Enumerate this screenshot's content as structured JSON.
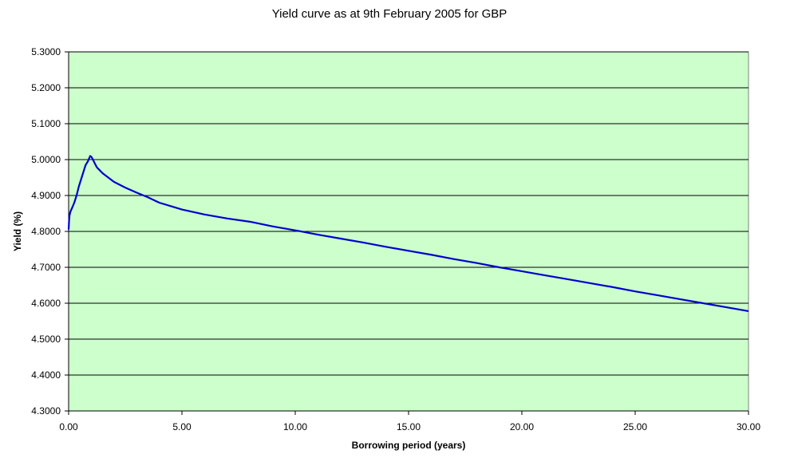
{
  "chart_data": {
    "type": "line",
    "title": "Yield curve as at 9th February 2005 for GBP",
    "xlabel": "Borrowing period (years)",
    "ylabel": "Yield (%)",
    "xlim": [
      0,
      30
    ],
    "ylim": [
      4.3,
      5.3
    ],
    "x_ticks": [
      0,
      5,
      10,
      15,
      20,
      25,
      30
    ],
    "x_tick_labels": [
      "0.00",
      "5.00",
      "10.00",
      "15.00",
      "20.00",
      "25.00",
      "30.00"
    ],
    "y_ticks": [
      4.3,
      4.4,
      4.5,
      4.6,
      4.7,
      4.8,
      4.9,
      5.0,
      5.1,
      5.2,
      5.3
    ],
    "y_tick_labels": [
      "4.3000",
      "4.4000",
      "4.5000",
      "4.6000",
      "4.7000",
      "4.8000",
      "4.9000",
      "5.0000",
      "5.1000",
      "5.2000",
      "5.3000"
    ],
    "grid": "horizontal",
    "legend": "none",
    "series": [
      {
        "x": [
          0.0,
          0.02,
          0.04,
          0.08,
          0.15,
          0.25,
          0.35,
          0.45,
          0.55,
          0.65,
          0.75,
          0.85,
          0.95,
          1.0,
          1.05,
          1.15,
          1.25,
          1.5,
          1.75,
          2.0,
          2.5,
          3.0,
          3.5,
          4.0,
          5.0,
          6.0,
          7.0,
          8.0,
          9.0,
          10.0,
          11.0,
          12.0,
          13.0,
          14.0,
          15.0,
          16.0,
          17.0,
          18.0,
          19.0,
          20.0,
          21.0,
          22.0,
          23.0,
          24.0,
          25.0,
          26.0,
          27.0,
          28.0,
          29.0,
          30.0
        ],
        "values": [
          4.805,
          4.83,
          4.845,
          4.855,
          4.865,
          4.88,
          4.9,
          4.925,
          4.945,
          4.965,
          4.985,
          4.995,
          5.01,
          5.008,
          5.003,
          4.99,
          4.978,
          4.962,
          4.95,
          4.938,
          4.922,
          4.908,
          4.895,
          4.88,
          4.861,
          4.847,
          4.836,
          4.827,
          4.814,
          4.803,
          4.791,
          4.78,
          4.769,
          4.757,
          4.746,
          4.735,
          4.723,
          4.712,
          4.7,
          4.689,
          4.678,
          4.667,
          4.656,
          4.645,
          4.633,
          4.622,
          4.611,
          4.6,
          4.589,
          4.578
        ]
      }
    ]
  },
  "colors": {
    "plot_background": "#ccffcc",
    "line": "#0000cc",
    "grid": "#000000",
    "page_background": "#ffffff"
  }
}
